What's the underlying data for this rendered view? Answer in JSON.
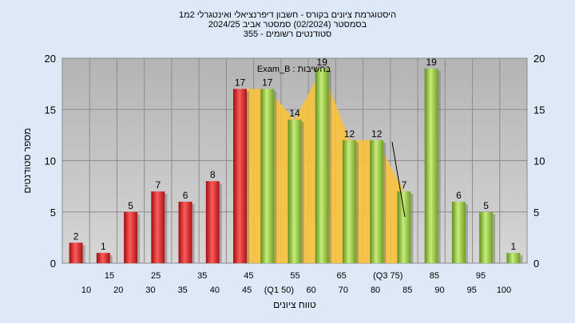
{
  "chart_data": {
    "type": "bar",
    "title_lines": [
      "היסטוגרמת ציונים בקורס - חשבון דיפרנציאלי ואינטגרלי 2מ1",
      "בסמסטר   (02/2024)  סמסטר אביב 2024/25",
      "סטודנטים רשומים - 355"
    ],
    "xlabel": "טווח ציונים",
    "ylabel": "מספר סטודנטים",
    "ylim": [
      0,
      20
    ],
    "yticks": [
      "0",
      "5",
      "10",
      "15",
      "20"
    ],
    "categories": [
      "10",
      "20",
      "30",
      "35",
      "40",
      "45",
      "50",
      "55",
      "60",
      "65",
      "70",
      "75",
      "80",
      "85",
      "90",
      "95",
      "100"
    ],
    "values": [
      2,
      1,
      5,
      7,
      6,
      8,
      17,
      17,
      14,
      19,
      12,
      12,
      7,
      19,
      6,
      5,
      1
    ],
    "colors": [
      "red",
      "red",
      "red",
      "red",
      "red",
      "red",
      "red",
      "green",
      "green",
      "green",
      "green",
      "green",
      "green",
      "green",
      "green",
      "green",
      "green"
    ],
    "lower_axis_labels": [
      "10",
      "20",
      "30",
      "35",
      "40",
      "45",
      "(Q1 50)",
      "60",
      "70",
      "80",
      "85",
      "90",
      "95",
      "100"
    ],
    "upper_axis_labels": [
      "15",
      "25",
      "35",
      "45",
      "55",
      "65",
      "(Q3 75)",
      "85",
      "95"
    ],
    "annotation": "Exam_B : בחשיבות",
    "area_values": [
      17,
      17,
      14,
      19,
      12,
      12,
      7
    ],
    "palette": {
      "red": "#e02424",
      "green": "#8fc63f",
      "area": "#f7c23c",
      "plot_bg": "#c0c0c0",
      "page_bg": "#dde9f6"
    }
  }
}
